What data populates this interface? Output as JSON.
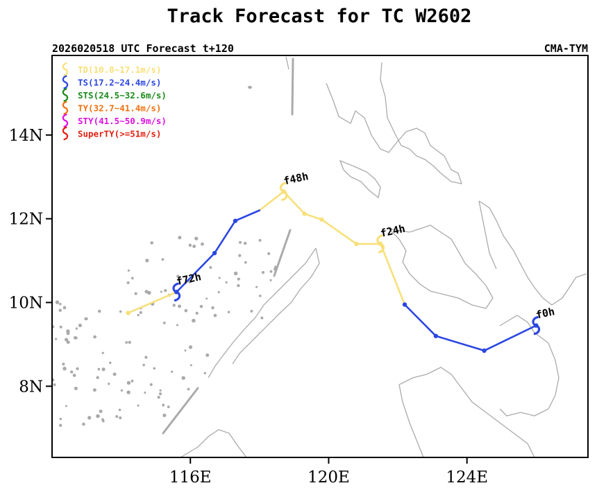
{
  "chart_data": {
    "type": "line",
    "title": "Track Forecast for TC W2602",
    "subtitle_left": "2026020518 UTC Forecast t+120",
    "subtitle_right": "CMA-TYM",
    "xlim": [
      112,
      127.5
    ],
    "ylim": [
      6.3,
      15.9
    ],
    "x_ticks": [
      {
        "value": 116,
        "label": "116E"
      },
      {
        "value": 120,
        "label": "120E"
      },
      {
        "value": 124,
        "label": "124E"
      }
    ],
    "y_ticks": [
      {
        "value": 8,
        "label": "8N"
      },
      {
        "value": 10,
        "label": "10N"
      },
      {
        "value": 12,
        "label": "12N"
      },
      {
        "value": 14,
        "label": "14N"
      }
    ],
    "legend": [
      {
        "name": "TD",
        "label": "TD(10.8~17.1m/s)",
        "color": "#f7e07a"
      },
      {
        "name": "TS",
        "label": "TS(17.2~24.4m/s)",
        "color": "#2b46e0"
      },
      {
        "name": "STS",
        "label": "STS(24.5~32.6m/s)",
        "color": "#1a8a1a"
      },
      {
        "name": "TY",
        "label": "TY(32.7~41.4m/s)",
        "color": "#f07010"
      },
      {
        "name": "STY",
        "label": "STY(41.5~50.9m/s)",
        "color": "#e010e0"
      },
      {
        "name": "SuperTY",
        "label": "SuperTY(>=51m/s)",
        "color": "#e02010"
      }
    ],
    "track_segments": [
      {
        "category": "TS",
        "color": "#2b46e0",
        "points": [
          [
            126.0,
            9.45
          ],
          [
            124.5,
            8.85
          ],
          [
            123.1,
            9.2
          ],
          [
            122.2,
            9.95
          ]
        ]
      },
      {
        "category": "TD",
        "color": "#f7e07a",
        "points": [
          [
            122.2,
            9.95
          ],
          [
            121.5,
            11.4
          ],
          [
            120.8,
            11.4
          ],
          [
            119.8,
            11.98
          ],
          [
            119.3,
            12.12
          ],
          [
            118.7,
            12.65
          ],
          [
            118.0,
            12.2
          ]
        ]
      },
      {
        "category": "TS",
        "color": "#2b46e0",
        "points": [
          [
            118.0,
            12.2
          ],
          [
            117.3,
            11.95
          ],
          [
            116.7,
            11.18
          ],
          [
            115.6,
            10.25
          ]
        ]
      },
      {
        "category": "TD",
        "color": "#f7e07a",
        "points": [
          [
            115.6,
            10.25
          ],
          [
            114.2,
            9.75
          ]
        ]
      }
    ],
    "track_points": [
      {
        "lon": 126.0,
        "lat": 9.45,
        "color": "#2b46e0"
      },
      {
        "lon": 124.5,
        "lat": 8.85,
        "color": "#2b46e0"
      },
      {
        "lon": 123.1,
        "lat": 9.2,
        "color": "#2b46e0"
      },
      {
        "lon": 122.2,
        "lat": 9.95,
        "color": "#2b46e0"
      },
      {
        "lon": 121.5,
        "lat": 11.4,
        "color": "#f7e07a"
      },
      {
        "lon": 120.8,
        "lat": 11.4,
        "color": "#f7e07a"
      },
      {
        "lon": 119.8,
        "lat": 11.98,
        "color": "#f7e07a"
      },
      {
        "lon": 119.3,
        "lat": 12.12,
        "color": "#f7e07a"
      },
      {
        "lon": 118.7,
        "lat": 12.65,
        "color": "#f7e07a"
      },
      {
        "lon": 117.3,
        "lat": 11.95,
        "color": "#2b46e0"
      },
      {
        "lon": 116.7,
        "lat": 11.18,
        "color": "#2b46e0"
      },
      {
        "lon": 115.6,
        "lat": 10.25,
        "color": "#2b46e0"
      },
      {
        "lon": 114.2,
        "lat": 9.75,
        "color": "#f7e07a"
      }
    ],
    "markers": [
      {
        "label": "f0h",
        "lon": 126.0,
        "lat": 9.45,
        "color": "#2b46e0"
      },
      {
        "label": "f24h",
        "lon": 121.5,
        "lat": 11.4,
        "color": "#f7e07a"
      },
      {
        "label": "f48h",
        "lon": 118.7,
        "lat": 12.65,
        "color": "#f7e07a"
      },
      {
        "label": "f72h",
        "lon": 115.6,
        "lat": 10.25,
        "color": "#2b46e0"
      }
    ]
  }
}
